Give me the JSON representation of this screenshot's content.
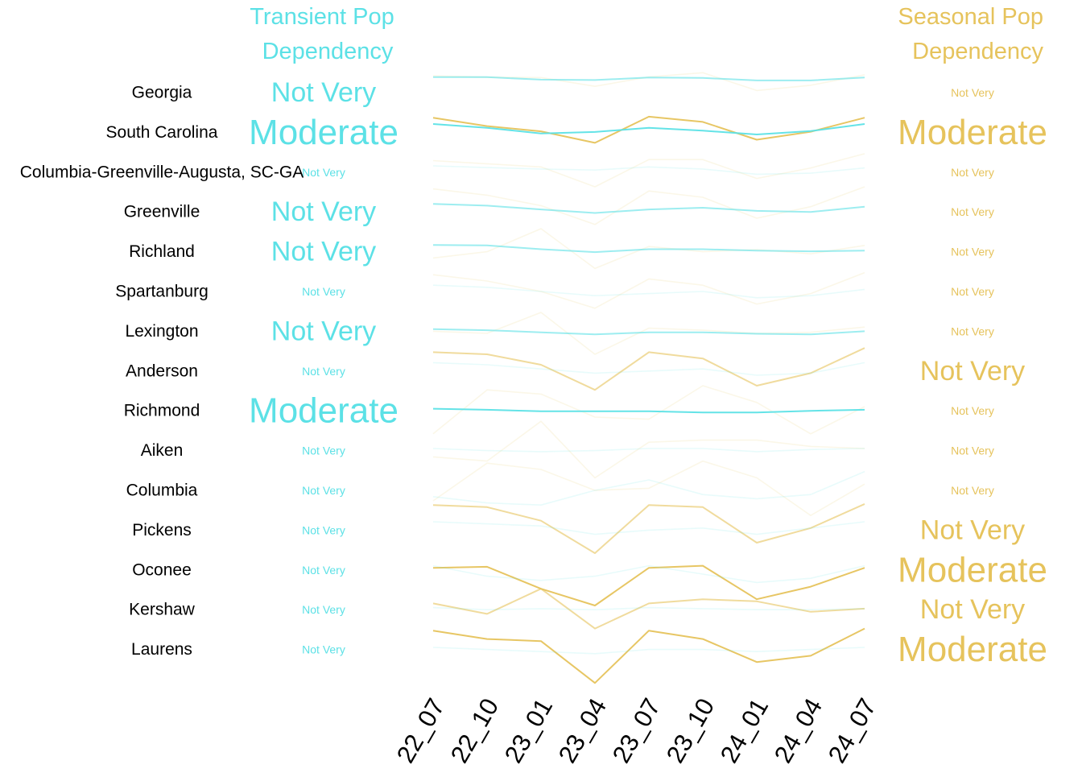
{
  "chart_data": {
    "type": "line",
    "left_header": [
      "Transient Pop",
      "Dependency"
    ],
    "right_header": [
      "Seasonal Pop",
      "Dependency"
    ],
    "colors": {
      "transient": "#5ce1e6",
      "seasonal": "#e6c35c",
      "region_label": "#000000",
      "axis_label": "#000000"
    },
    "x": [
      "22_07",
      "22_10",
      "23_01",
      "23_04",
      "23_07",
      "23_10",
      "24_01",
      "24_04",
      "24_07"
    ],
    "regions": [
      {
        "name": "Georgia",
        "transient_level": "Not Very",
        "transient_emphasis": "high",
        "seasonal_level": "Not Very",
        "seasonal_emphasis": "low",
        "transient": [
          0.74,
          0.74,
          0.62,
          0.6,
          0.72,
          0.7,
          0.58,
          0.58,
          0.72
        ],
        "seasonal": [
          0.8,
          0.74,
          0.72,
          0.3,
          0.75,
          0.95,
          0.1,
          0.35,
          0.85
        ]
      },
      {
        "name": "South Carolina",
        "transient_level": "Moderate",
        "transient_emphasis": "max",
        "seasonal_level": "Moderate",
        "seasonal_emphasis": "max",
        "transient": [
          0.4,
          0.22,
          -0.05,
          0.02,
          0.22,
          0.08,
          -0.1,
          0.06,
          0.4
        ],
        "seasonal": [
          0.7,
          0.3,
          0.05,
          -0.5,
          0.75,
          0.5,
          -0.35,
          0.03,
          0.7
        ]
      },
      {
        "name": "Columbia-Greenville-Augusta, SC-GA",
        "transient_level": "Not Very",
        "transient_emphasis": "low",
        "seasonal_level": "Not Very",
        "seasonal_emphasis": "low",
        "transient": [
          0.3,
          0.22,
          0.15,
          0.1,
          0.25,
          0.15,
          -0.1,
          -0.05,
          0.2
        ],
        "seasonal": [
          0.55,
          0.4,
          0.25,
          -0.7,
          0.6,
          0.6,
          -0.3,
          0.2,
          0.88
        ]
      },
      {
        "name": "Greenville",
        "transient_level": "Not Very",
        "transient_emphasis": "high",
        "seasonal_level": "Not Very",
        "seasonal_emphasis": "low",
        "transient": [
          0.38,
          0.3,
          0.12,
          -0.05,
          0.12,
          0.2,
          0.05,
          0.0,
          0.25
        ],
        "seasonal": [
          1.1,
          0.8,
          0.3,
          -0.6,
          1.0,
          0.7,
          -0.3,
          0.25,
          1.2
        ]
      },
      {
        "name": "Richland",
        "transient_level": "Not Very",
        "transient_emphasis": "high",
        "seasonal_level": "Not Very",
        "seasonal_emphasis": "low",
        "transient": [
          0.32,
          0.3,
          0.12,
          -0.02,
          0.12,
          0.12,
          0.05,
          0.02,
          0.05
        ],
        "seasonal": [
          -0.3,
          0.0,
          1.1,
          -0.8,
          0.25,
          0.0,
          0.1,
          -0.1,
          0.3
        ]
      },
      {
        "name": "Spartanburg",
        "transient_level": "Not Very",
        "transient_emphasis": "low",
        "seasonal_level": "Not Very",
        "seasonal_emphasis": "low",
        "transient": [
          0.3,
          0.2,
          0.0,
          -0.2,
          -0.1,
          0.0,
          -0.3,
          -0.2,
          0.1
        ],
        "seasonal": [
          0.8,
          0.5,
          0.0,
          -0.8,
          0.6,
          0.3,
          -0.6,
          -0.1,
          0.9
        ]
      },
      {
        "name": "Lexington",
        "transient_level": "Not Very",
        "transient_emphasis": "high",
        "seasonal_level": "Not Very",
        "seasonal_emphasis": "low",
        "transient": [
          0.1,
          0.05,
          -0.05,
          -0.15,
          -0.05,
          -0.05,
          -0.12,
          -0.15,
          0.0
        ],
        "seasonal": [
          0.0,
          -0.1,
          0.9,
          -1.1,
          0.15,
          0.05,
          -0.1,
          -0.05,
          0.2
        ]
      },
      {
        "name": "Anderson",
        "transient_level": "Not Very",
        "transient_emphasis": "low",
        "seasonal_level": "Not Very",
        "seasonal_emphasis": "high",
        "transient": [
          0.4,
          0.3,
          0.1,
          -0.1,
          0.0,
          0.1,
          -0.2,
          -0.1,
          0.4
        ],
        "seasonal": [
          0.9,
          0.8,
          0.3,
          -0.9,
          0.9,
          0.6,
          -0.7,
          -0.1,
          1.1
        ]
      },
      {
        "name": "Richmond",
        "transient_level": "Moderate",
        "transient_emphasis": "max",
        "seasonal_level": "Not Very",
        "seasonal_emphasis": "low",
        "transient": [
          0.1,
          0.05,
          -0.02,
          -0.02,
          -0.02,
          -0.08,
          -0.08,
          0.0,
          0.05
        ],
        "seasonal": [
          -1.1,
          1.0,
          0.8,
          -0.3,
          -0.4,
          1.2,
          0.4,
          -1.1,
          0.2
        ]
      },
      {
        "name": "Aiken",
        "transient_level": "Not Very",
        "transient_emphasis": "low",
        "seasonal_level": "Not Very",
        "seasonal_emphasis": "low",
        "transient": [
          0.1,
          0.0,
          -0.05,
          0.0,
          0.1,
          0.1,
          -0.05,
          0.05,
          0.1
        ],
        "seasonal": [
          -0.3,
          -0.5,
          1.4,
          -1.3,
          0.4,
          0.5,
          0.5,
          0.2,
          0.1
        ]
      },
      {
        "name": "Columbia",
        "transient_level": "Not Very",
        "transient_emphasis": "low",
        "seasonal_level": "Not Very",
        "seasonal_emphasis": "low",
        "transient": [
          -0.3,
          -0.6,
          -0.7,
          0.0,
          0.5,
          -0.2,
          -0.4,
          -0.2,
          0.9
        ],
        "seasonal": [
          -0.5,
          1.3,
          1.0,
          0.0,
          0.1,
          1.4,
          0.6,
          -1.2,
          0.3
        ]
      },
      {
        "name": "Pickens",
        "transient_level": "Not Very",
        "transient_emphasis": "low",
        "seasonal_level": "Not Very",
        "seasonal_emphasis": "high",
        "transient": [
          0.4,
          0.3,
          0.2,
          -0.2,
          0.0,
          0.1,
          -0.2,
          0.1,
          0.4
        ],
        "seasonal": [
          1.2,
          1.1,
          0.45,
          -1.1,
          1.2,
          1.1,
          -0.6,
          0.1,
          1.25
        ]
      },
      {
        "name": "Oconee",
        "transient_level": "Not Very",
        "transient_emphasis": "low",
        "seasonal_level": "Moderate",
        "seasonal_emphasis": "max",
        "transient": [
          0.2,
          -0.3,
          -0.5,
          -0.3,
          0.2,
          -0.2,
          -0.6,
          -0.4,
          0.2
        ],
        "seasonal": [
          0.1,
          0.15,
          -0.9,
          -1.7,
          0.1,
          0.2,
          -1.4,
          -0.8,
          0.1
        ]
      },
      {
        "name": "Kershaw",
        "transient_level": "Not Very",
        "transient_emphasis": "low",
        "seasonal_level": "Not Very",
        "seasonal_emphasis": "high",
        "transient": [
          0.1,
          0.0,
          0.05,
          0.0,
          0.1,
          0.05,
          0.0,
          0.0,
          0.05
        ],
        "seasonal": [
          0.3,
          -0.2,
          1.0,
          -0.9,
          0.3,
          0.5,
          0.4,
          -0.1,
          0.05
        ]
      },
      {
        "name": "Laurens",
        "transient_level": "Not Very",
        "transient_emphasis": "low",
        "seasonal_level": "Moderate",
        "seasonal_emphasis": "max",
        "transient": [
          0.1,
          0.0,
          -0.1,
          -0.2,
          0.0,
          0.0,
          -0.1,
          0.0,
          0.1
        ],
        "seasonal": [
          0.9,
          0.5,
          0.4,
          -1.6,
          0.9,
          0.5,
          -0.6,
          -0.3,
          1.0
        ]
      }
    ]
  }
}
